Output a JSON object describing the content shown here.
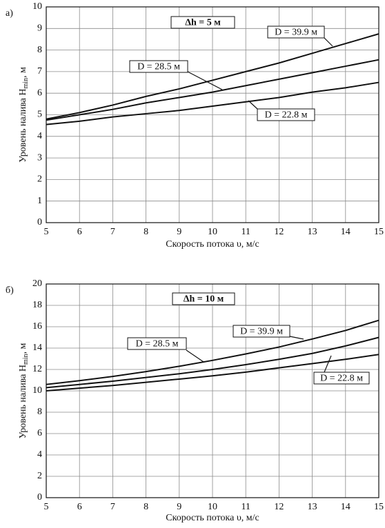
{
  "chart_data": [
    {
      "type": "line",
      "panel": "а)",
      "annotation": "Δh = 5 м",
      "xlabel": "Скорость потока υ, м/с",
      "ylabel": [
        "Уровень налива H",
        "min",
        ", м"
      ],
      "x": [
        5,
        6,
        7,
        8,
        9,
        10,
        11,
        12,
        13,
        14,
        15
      ],
      "series": [
        {
          "name": "D = 39.9 м",
          "color": "#111111",
          "values": [
            4.8,
            5.1,
            5.45,
            5.85,
            6.2,
            6.6,
            7.0,
            7.4,
            7.85,
            8.3,
            8.75
          ]
        },
        {
          "name": "D = 28.5 м",
          "color": "#111111",
          "values": [
            4.75,
            5.0,
            5.25,
            5.55,
            5.8,
            6.05,
            6.35,
            6.65,
            6.95,
            7.25,
            7.55
          ]
        },
        {
          "name": "D = 22.8 м",
          "color": "#111111",
          "values": [
            4.55,
            4.7,
            4.9,
            5.05,
            5.2,
            5.4,
            5.6,
            5.8,
            6.05,
            6.25,
            6.5
          ]
        }
      ],
      "xlim": [
        5,
        15
      ],
      "xticks": [
        5,
        6,
        7,
        8,
        9,
        10,
        11,
        12,
        13,
        14,
        15
      ],
      "ylim": [
        0,
        10
      ],
      "yticks": [
        0,
        1,
        2,
        3,
        4,
        5,
        6,
        7,
        8,
        9,
        10
      ],
      "grid": true
    },
    {
      "type": "line",
      "panel": "б)",
      "annotation": "Δh = 10 м",
      "xlabel": "Скорость потока υ, м/с",
      "ylabel": [
        "Уровень налива H",
        "min",
        ", м"
      ],
      "x": [
        5,
        6,
        7,
        8,
        9,
        10,
        11,
        12,
        13,
        14,
        15
      ],
      "series": [
        {
          "name": "D = 39.9 м",
          "color": "#111111",
          "values": [
            10.6,
            10.95,
            11.35,
            11.8,
            12.3,
            12.85,
            13.45,
            14.1,
            14.85,
            15.65,
            16.6
          ]
        },
        {
          "name": "D = 28.5 м",
          "color": "#111111",
          "values": [
            10.3,
            10.6,
            10.9,
            11.25,
            11.6,
            12.0,
            12.45,
            12.95,
            13.5,
            14.2,
            15.0
          ]
        },
        {
          "name": "D = 22.8 м",
          "color": "#111111",
          "values": [
            10.0,
            10.25,
            10.5,
            10.8,
            11.1,
            11.4,
            11.75,
            12.15,
            12.55,
            12.95,
            13.4
          ]
        }
      ],
      "xlim": [
        5,
        15
      ],
      "xticks": [
        5,
        6,
        7,
        8,
        9,
        10,
        11,
        12,
        13,
        14,
        15
      ],
      "ylim": [
        0,
        20
      ],
      "yticks": [
        0,
        2,
        4,
        6,
        8,
        10,
        12,
        14,
        16,
        18,
        20
      ],
      "grid": true
    }
  ]
}
